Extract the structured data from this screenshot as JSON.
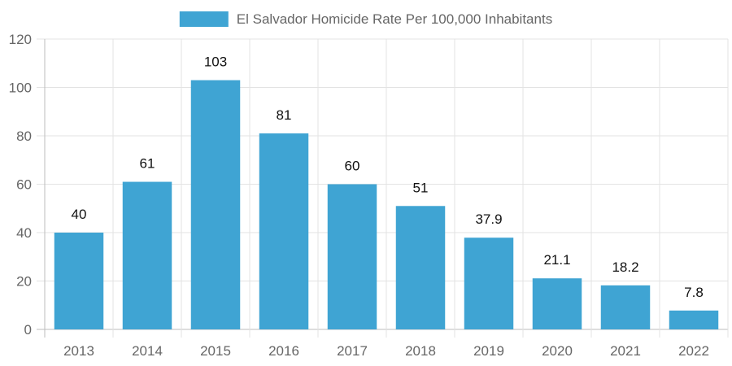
{
  "chart_data": {
    "type": "bar",
    "categories": [
      "2013",
      "2014",
      "2015",
      "2016",
      "2017",
      "2018",
      "2019",
      "2020",
      "2021",
      "2022"
    ],
    "series": [
      {
        "name": "El Salvador Homicide Rate Per 100,000 Inhabitants",
        "values": [
          40,
          61,
          103,
          81,
          60,
          51,
          37.9,
          21.1,
          18.2,
          7.8
        ],
        "labels": [
          "40",
          "61",
          "103",
          "81",
          "60",
          "51",
          "37.9",
          "21.1",
          "18.2",
          "7.8"
        ],
        "color": "#3fa4d3"
      }
    ],
    "ylim": [
      0,
      120
    ],
    "yticks": [
      0,
      20,
      40,
      60,
      80,
      100,
      120
    ],
    "grid": true,
    "legend_position": "top-center",
    "title": "",
    "xlabel": "",
    "ylabel": ""
  }
}
